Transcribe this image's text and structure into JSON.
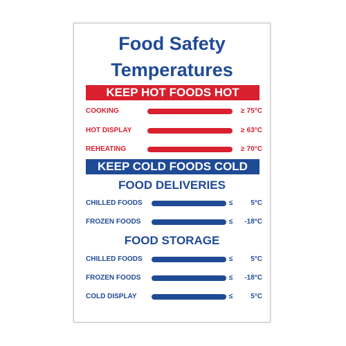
{
  "title": {
    "line1": "Food Safety",
    "line2": "Temperatures"
  },
  "hot_band": "KEEP HOT FOODS HOT",
  "hot_rows": [
    {
      "label": "COOKING",
      "sym": "≥",
      "value": "75°C"
    },
    {
      "label": "HOT DISPLAY",
      "sym": "≥",
      "value": "63°C"
    },
    {
      "label": "REHEATING",
      "sym": "≥",
      "value": "70°C"
    }
  ],
  "cold_band": "KEEP COLD FOODS COLD",
  "deliveries": {
    "heading": "FOOD DELIVERIES",
    "rows": [
      {
        "label": "CHILLED FOODS",
        "sym": "≤",
        "value": "5°C"
      },
      {
        "label": "FROZEN FOODS",
        "sym": "≤",
        "value": "-18°C"
      }
    ]
  },
  "storage": {
    "heading": "FOOD STORAGE",
    "rows": [
      {
        "label": "CHILLED FOODS",
        "sym": "≤",
        "value": "5°C"
      },
      {
        "label": "FROZEN FOODS",
        "sym": "≤",
        "value": "-18°C"
      },
      {
        "label": "COLD DISPLAY",
        "sym": "≤",
        "value": "5°C"
      }
    ]
  },
  "colors": {
    "red": "#d8202f",
    "blue": "#1f4a96"
  }
}
